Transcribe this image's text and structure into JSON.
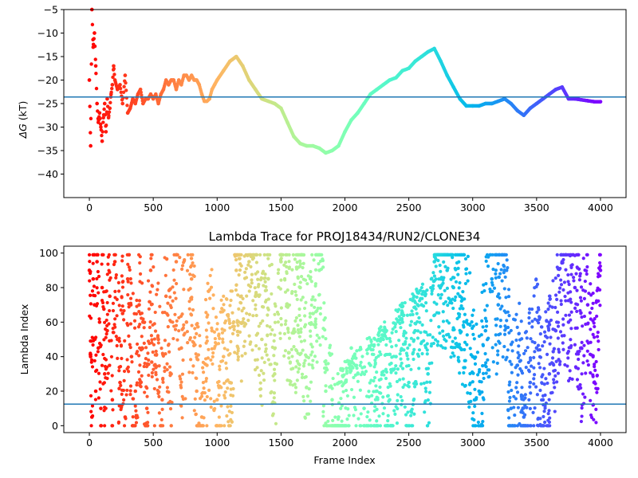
{
  "chart_data": [
    {
      "type": "scatter",
      "title": "",
      "xlabel": "",
      "ylabel": "ΔG (kT)",
      "ylabel_symbol": "ΔG",
      "ylabel_unit": " (kT)",
      "xlim": [
        -200,
        4200
      ],
      "ylim": [
        -45,
        -5
      ],
      "xticks": [
        0,
        500,
        1000,
        1500,
        2000,
        2500,
        3000,
        3500,
        4000
      ],
      "yticks": [
        -40,
        -35,
        -30,
        -25,
        -20,
        -15,
        -10,
        -5
      ],
      "grid": false,
      "colormap": "rainbow (red at start → violet at end of run)",
      "hline": {
        "y": -23.6,
        "color": "#1f77b4"
      },
      "series": [
        {
          "description_points": true,
          "x": [
            0,
            10,
            20,
            30,
            40,
            50,
            60,
            70,
            80,
            90,
            100,
            110,
            120,
            130,
            140,
            150,
            160,
            170,
            180,
            190,
            200,
            220,
            240,
            260,
            280,
            300,
            320,
            340,
            360,
            380,
            400,
            420,
            440,
            460,
            480,
            500,
            520,
            540,
            560,
            580,
            600,
            620,
            640,
            660,
            680,
            700,
            720,
            740,
            760,
            780,
            800,
            820,
            840,
            860,
            880,
            900,
            920,
            940,
            960,
            980,
            1000,
            1050,
            1100,
            1150,
            1200,
            1250,
            1300,
            1350,
            1400,
            1450,
            1500,
            1550,
            1600,
            1650,
            1700,
            1750,
            1800,
            1850,
            1900,
            1950,
            2000,
            2050,
            2100,
            2150,
            2200,
            2250,
            2300,
            2350,
            2400,
            2450,
            2500,
            2550,
            2600,
            2650,
            2700,
            2750,
            2800,
            2850,
            2900,
            2950,
            3000,
            3050,
            3100,
            3150,
            3200,
            3250,
            3300,
            3350,
            3400,
            3450,
            3500,
            3550,
            3600,
            3650,
            3700,
            3750,
            3800,
            3850,
            3900,
            3950,
            4000
          ],
          "y": [
            -20,
            -34,
            -5,
            -13,
            -10,
            -17,
            -25,
            -29,
            -27,
            -30,
            -33,
            -28,
            -25,
            -31,
            -24,
            -28,
            -26,
            -23,
            -21,
            -17,
            -20,
            -22,
            -21,
            -25,
            -19,
            -27,
            -26,
            -24,
            -25,
            -23,
            -22,
            -25,
            -24,
            -24,
            -23,
            -24,
            -23,
            -25,
            -23,
            -22,
            -20,
            -21,
            -20,
            -20,
            -22,
            -20,
            -21,
            -19,
            -19,
            -20,
            -19,
            -20,
            -20,
            -21,
            -23,
            -24.5,
            -24.5,
            -24,
            -22,
            -21,
            -20,
            -18,
            -16,
            -15,
            -17,
            -20,
            -22,
            -24,
            -24.5,
            -25,
            -26,
            -29,
            -32,
            -33.5,
            -34,
            -34,
            -34.5,
            -35.5,
            -35,
            -34,
            -31,
            -28.5,
            -27,
            -25,
            -23,
            -22,
            -21,
            -20,
            -19.5,
            -18,
            -17.5,
            -16,
            -15,
            -14,
            -13.3,
            -16,
            -19,
            -21.5,
            -24,
            -25.5,
            -25.5,
            -25.5,
            -25,
            -25,
            -24.5,
            -24,
            -25,
            -26.5,
            -27.5,
            -26,
            -25,
            -24,
            -23,
            -22,
            -21.5,
            -24,
            -24,
            -24.2,
            -24.4,
            -24.6,
            -24.6
          ]
        }
      ]
    },
    {
      "type": "scatter",
      "title": "Lambda Trace for PROJ18434/RUN2/CLONE34",
      "xlabel": "Frame Index",
      "ylabel": "Lambda Index",
      "xlim": [
        -200,
        4200
      ],
      "ylim": [
        -4,
        104
      ],
      "xticks": [
        0,
        500,
        1000,
        1500,
        2000,
        2500,
        3000,
        3500,
        4000
      ],
      "yticks": [
        0,
        20,
        40,
        60,
        80,
        100
      ],
      "grid": false,
      "colormap": "rainbow (red at start → violet at end of run)",
      "hline": {
        "y": 12.5,
        "color": "#1f77b4"
      },
      "series": [
        {
          "description_points": true,
          "x": [
            0,
            10,
            20,
            30,
            40,
            50,
            60,
            70,
            80,
            90,
            100,
            120,
            140,
            160,
            180,
            200,
            220,
            240,
            260,
            280,
            300,
            330,
            360,
            390,
            420,
            450,
            480,
            510,
            540,
            570,
            600,
            640,
            680,
            720,
            760,
            800,
            840,
            880,
            920,
            960,
            1000,
            1050,
            1100,
            1150,
            1200,
            1250,
            1300,
            1350,
            1400,
            1450,
            1500,
            1550,
            1600,
            1650,
            1700,
            1750,
            1800,
            1850,
            1900,
            1950,
            2000,
            2050,
            2100,
            2150,
            2200,
            2250,
            2300,
            2350,
            2400,
            2450,
            2500,
            2550,
            2600,
            2650,
            2700,
            2750,
            2800,
            2850,
            2900,
            2950,
            3000,
            3050,
            3100,
            3150,
            3200,
            3250,
            3300,
            3350,
            3400,
            3450,
            3500,
            3550,
            3600,
            3650,
            3700,
            3750,
            3800,
            3850,
            3900,
            3950,
            4000
          ],
          "y": [
            90,
            40,
            5,
            85,
            70,
            20,
            95,
            45,
            60,
            10,
            80,
            30,
            55,
            75,
            15,
            95,
            50,
            25,
            65,
            5,
            85,
            40,
            20,
            70,
            60,
            10,
            90,
            35,
            50,
            15,
            75,
            30,
            95,
            45,
            60,
            85,
            20,
            5,
            35,
            55,
            15,
            40,
            25,
            90,
            60,
            95,
            75,
            50,
            85,
            30,
            95,
            70,
            55,
            80,
            40,
            65,
            90,
            20,
            15,
            5,
            25,
            45,
            30,
            10,
            35,
            20,
            50,
            15,
            40,
            60,
            25,
            55,
            70,
            30,
            95,
            85,
            90,
            80,
            75,
            60,
            40,
            20,
            55,
            85,
            70,
            90,
            10,
            35,
            5,
            25,
            45,
            15,
            30,
            55,
            95,
            60,
            80,
            45,
            70,
            25,
            90
          ]
        }
      ]
    }
  ]
}
